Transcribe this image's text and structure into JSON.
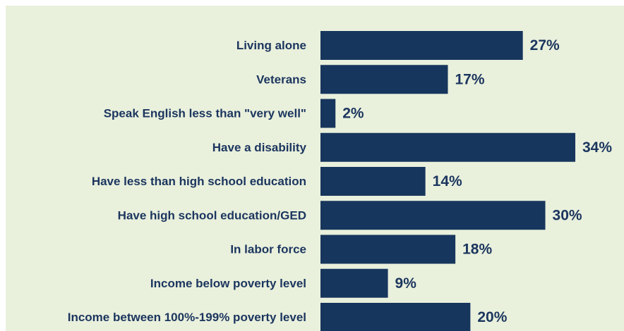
{
  "chart_data": {
    "type": "bar",
    "orientation": "horizontal",
    "categories": [
      "Living alone",
      "Veterans",
      "Speak English less than \"very well\"",
      "Have a disability",
      "Have less than high school education",
      "Have high school education/GED",
      "In labor force",
      "Income below poverty level",
      "Income between 100%-199% poverty level"
    ],
    "values": [
      27,
      17,
      2,
      34,
      14,
      30,
      18,
      9,
      20
    ],
    "value_labels": [
      "27%",
      "17%",
      "2%",
      "34%",
      "14%",
      "30%",
      "18%",
      "9%",
      "20%"
    ],
    "xlim": [
      0,
      34
    ],
    "grid": false,
    "legend": "none",
    "colors": {
      "bar": "#17365d",
      "label": "#1b355e",
      "background": "#e9f0dc"
    }
  }
}
